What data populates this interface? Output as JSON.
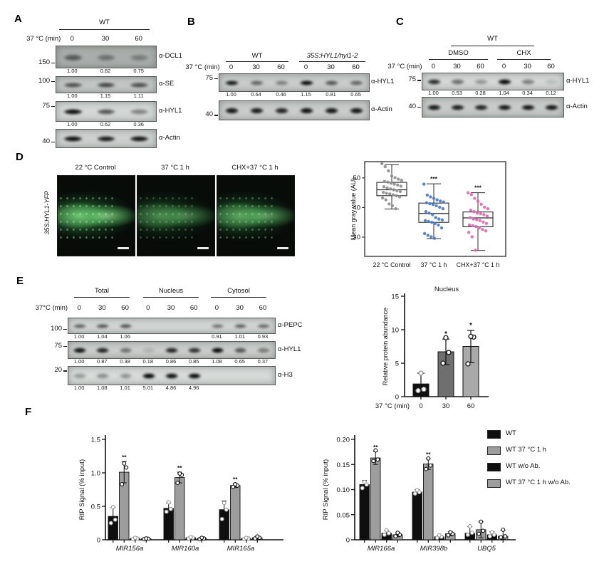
{
  "panel_a": {
    "label": "A",
    "groups": [
      {
        "text": "WT",
        "italic": false
      }
    ],
    "lane_axis_label": "37 °C (min)",
    "lanes": [
      "0",
      "30",
      "60"
    ],
    "blots": [
      {
        "antibody": "α-DCL1",
        "marker": "150",
        "values": [
          "1.00",
          "0.82",
          "0.75"
        ],
        "band_darkness": [
          0.5,
          0.36,
          0.3
        ],
        "bg": "#a9aeac"
      },
      {
        "antibody": "α-SE",
        "marker": "100",
        "values": [
          "1.00",
          "1.15",
          "1.11"
        ],
        "band_darkness": [
          0.62,
          0.68,
          0.64
        ],
        "bg": "#c3c7c5"
      },
      {
        "antibody": "α-HYL1",
        "marker": "75",
        "values": [
          "1.00",
          "0.62",
          "0.36"
        ],
        "band_darkness": [
          0.97,
          0.62,
          0.4
        ],
        "bg": "#d3d7d5"
      },
      {
        "antibody": "α-Actin",
        "marker": "40",
        "values": null,
        "band_darkness": [
          0.96,
          0.9,
          0.93
        ],
        "bg": "#cdd1cf"
      }
    ]
  },
  "panel_b": {
    "label": "B",
    "groups": [
      {
        "text": "WT",
        "italic": false
      },
      {
        "text": "35S:HYL1/hyl1-2",
        "italic": true
      }
    ],
    "lane_axis_label": "37 °C (min)",
    "lanes": [
      "0",
      "30",
      "60",
      "0",
      "30",
      "60"
    ],
    "blots": [
      {
        "antibody": "α-HYL1",
        "marker": "75",
        "values": [
          "1.00",
          "0.64",
          "0.46",
          "1.15",
          "0.81",
          "0.65"
        ],
        "band_darkness": [
          0.92,
          0.52,
          0.38,
          1.0,
          0.6,
          0.52
        ],
        "bg": "#c8ccca"
      },
      {
        "antibody": "α-Actin",
        "marker": "40",
        "values": null,
        "band_darkness": [
          0.93,
          0.9,
          0.86,
          0.95,
          0.93,
          0.93
        ],
        "bg": "#c8ccca"
      }
    ]
  },
  "panel_c": {
    "label": "C",
    "top_header": "WT",
    "groups": [
      {
        "text": "DMSO",
        "italic": false
      },
      {
        "text": "CHX",
        "italic": false
      }
    ],
    "lane_axis_label": "37 °C (min)",
    "lanes": [
      "0",
      "30",
      "60",
      "0",
      "30",
      "60"
    ],
    "blots": [
      {
        "antibody": "α-HYL1",
        "marker": "75",
        "values": [
          "1.00",
          "0.53",
          "0.28",
          "1.04",
          "0.34",
          "0.12"
        ],
        "band_darkness": [
          0.82,
          0.5,
          0.3,
          1.0,
          0.42,
          0.12
        ],
        "bg": "#d4d8d6"
      },
      {
        "antibody": "α-Actin",
        "marker": "40",
        "values": null,
        "band_darkness": [
          0.93,
          0.9,
          0.88,
          0.93,
          0.94,
          0.95
        ],
        "bg": "#c6cac8"
      }
    ]
  },
  "panel_d": {
    "label": "D",
    "side_label": "35S:HYL1-YFP",
    "images": [
      {
        "title": "22 °C Control",
        "brightness": 1.0
      },
      {
        "title": "37 °C  1 h",
        "brightness": 0.6
      },
      {
        "title": "CHX+37 °C  1 h",
        "brightness": 0.78
      }
    ]
  },
  "panel_e": {
    "label": "E",
    "groups": [
      {
        "text": "Total",
        "italic": false
      },
      {
        "text": "Nucleus",
        "italic": false
      },
      {
        "text": "Cytosol",
        "italic": false
      }
    ],
    "lane_axis_label": "37°C (min)",
    "lanes": [
      "0",
      "30",
      "60",
      "0",
      "30",
      "60",
      "0",
      "30",
      "60"
    ],
    "blots": [
      {
        "antibody": "α-PEPC",
        "marker": "100",
        "values": [
          "1.00",
          "1.04",
          "1.06",
          "",
          "",
          "",
          "0.91",
          "1.01",
          "0.93"
        ],
        "band_darkness": [
          0.55,
          0.6,
          0.62,
          0,
          0,
          0,
          0.45,
          0.55,
          0.5
        ],
        "bg": "#d2d6d4"
      },
      {
        "antibody": "α-HYL1",
        "marker": "75",
        "values": [
          "1.00",
          "0.87",
          "0.38",
          "0.18",
          "0.86",
          "0.85",
          "1.08",
          "0.65",
          "0.37"
        ],
        "band_darkness": [
          0.95,
          0.85,
          0.45,
          0.12,
          0.85,
          0.8,
          1.0,
          0.6,
          0.4
        ],
        "bg": "#c9cdcb"
      },
      {
        "antibody": "α-H3",
        "marker": "20",
        "values": [
          "1.00",
          "1.08",
          "1.01",
          "5.01",
          "4.86",
          "4.96",
          "",
          "",
          ""
        ],
        "band_darkness": [
          0.3,
          0.35,
          0.32,
          1.0,
          0.95,
          0.98,
          0,
          0,
          0
        ],
        "bg": "#d6dad8"
      }
    ]
  },
  "panel_f": {
    "label": "F",
    "legend": [
      {
        "label": "WT",
        "color": "#0f0f0f"
      },
      {
        "label": "WT 37 °C 1 h",
        "color": "#9d9d9d"
      },
      {
        "label": "WT  w/o Ab.",
        "color": "#0f0f0f"
      },
      {
        "label": "WT 37 °C 1 h w/o Ab.",
        "color": "#9d9d9d"
      }
    ]
  },
  "chart_data": [
    {
      "id": "d_boxplot",
      "panel": "D",
      "type": "box",
      "ylabel": "Mean gray value (AU)",
      "ylim": [
        23.5,
        55.5
      ],
      "yticks": [
        30,
        40,
        50
      ],
      "categories": [
        "22 °C Control",
        "37 °C  1 h",
        "CHX+37 °C  1 h"
      ],
      "point_colors": [
        "#8f8f8f",
        "#4a7cc9",
        "#df6aae"
      ],
      "boxes": [
        {
          "min": 39.5,
          "q1": 44.0,
          "median": 46.0,
          "q3": 48.5,
          "max": 54.5,
          "sig": ""
        },
        {
          "min": 29.5,
          "q1": 35.0,
          "median": 38.0,
          "q3": 41.5,
          "max": 48.0,
          "sig": "***"
        },
        {
          "min": 25.5,
          "q1": 33.5,
          "median": 36.5,
          "q3": 38.5,
          "max": 45.0,
          "sig": "***"
        }
      ],
      "points": [
        [
          54.8,
          53.8,
          52.4,
          50.6,
          50.1,
          49.6,
          49.2,
          48.8,
          48.6,
          48.2,
          47.9,
          47.6,
          47.2,
          47.0,
          46.6,
          46.3,
          46.0,
          45.7,
          45.4,
          45.1,
          44.8,
          44.6,
          44.3,
          44.0,
          43.6,
          43.2,
          42.6,
          41.2,
          40.6,
          39.6
        ],
        [
          47.9,
          44.2,
          43.6,
          43.1,
          42.6,
          42.2,
          41.9,
          41.6,
          41.3,
          41.0,
          40.6,
          40.1,
          39.6,
          38.6,
          38.1,
          37.6,
          36.6,
          36.1,
          35.8,
          35.6,
          35.3,
          35.0,
          34.6,
          34.1,
          33.1,
          31.2,
          30.6,
          30.1,
          29.6
        ],
        [
          45.0,
          44.4,
          43.1,
          42.1,
          41.1,
          40.1,
          39.6,
          39.1,
          38.6,
          38.1,
          37.9,
          37.6,
          37.1,
          36.6,
          36.1,
          35.9,
          35.6,
          35.1,
          34.6,
          34.1,
          33.9,
          33.6,
          33.1,
          32.6,
          32.1,
          31.6,
          30.1,
          25.6
        ]
      ]
    },
    {
      "id": "e_nucleus_bar",
      "panel": "E",
      "type": "bar",
      "title": "Nucleus",
      "ylabel": "Relative protein abundance",
      "xlabel": "37 °C (min)",
      "ylim": [
        0,
        15
      ],
      "yticks": [
        0,
        5,
        10,
        15
      ],
      "categories": [
        "0",
        "30",
        "60"
      ],
      "bar_colors": [
        "#0f0f0f",
        "#6f6f6f",
        "#a9a9a9"
      ],
      "point_strokes": [
        "#909090",
        "#111111",
        "#111111"
      ],
      "values": [
        1.9,
        6.7,
        7.5
      ],
      "errors": [
        1.6,
        1.9,
        2.4
      ],
      "sig": [
        "",
        "*",
        "*"
      ],
      "points": [
        [
          0.9,
          1.1,
          3.5
        ],
        [
          5.0,
          6.6,
          8.8
        ],
        [
          4.9,
          8.9,
          9.0
        ]
      ]
    },
    {
      "id": "f_left",
      "panel": "F",
      "type": "grouped_bar",
      "ylabel": "RIP Signal (% input)",
      "ylim": [
        0,
        1.5
      ],
      "yticks": [
        0,
        0.5,
        1.0,
        1.5
      ],
      "ytick_labels": [
        "0",
        "0.5",
        "1.0",
        "1.5"
      ],
      "categories": [
        "MIR156a",
        "MIR160a",
        "MIR165a"
      ],
      "series": [
        {
          "name": "WT",
          "color": "#0f0f0f",
          "point_stroke": "#9a9a9a",
          "values": [
            0.35,
            0.47,
            0.45
          ],
          "err": [
            0.13,
            0.08,
            0.13
          ],
          "sig": [
            "",
            "",
            ""
          ],
          "points": [
            [
              0.25,
              0.3,
              0.49
            ],
            [
              0.42,
              0.46,
              0.56
            ],
            [
              0.31,
              0.45,
              0.55
            ]
          ]
        },
        {
          "name": "WT 37 °C 1 h",
          "color": "#9d9d9d",
          "point_stroke": "#111111",
          "values": [
            1.01,
            0.93,
            0.81
          ],
          "err": [
            0.16,
            0.08,
            0.03
          ],
          "sig": [
            "**",
            "**",
            "**"
          ],
          "points": [
            [
              0.83,
              1.08,
              1.14
            ],
            [
              0.85,
              0.97,
              0.99
            ],
            [
              0.79,
              0.81,
              0.83
            ]
          ]
        },
        {
          "name": "WT  w/o Ab.",
          "color": "#0f0f0f",
          "point_stroke": "#9a9a9a",
          "values": [
            0.02,
            0.03,
            0.02
          ],
          "err": [
            0.01,
            0.012,
            0.01
          ],
          "sig": [
            "",
            "",
            ""
          ],
          "points": [
            [
              0.01,
              0.02,
              0.03
            ],
            [
              0.02,
              0.03,
              0.04
            ],
            [
              0.01,
              0.02,
              0.03
            ]
          ]
        },
        {
          "name": "WT 37 °C 1 h w/o Ab.",
          "color": "#9d9d9d",
          "point_stroke": "#111111",
          "values": [
            0.015,
            0.02,
            0.03
          ],
          "err": [
            0.008,
            0.01,
            0.02
          ],
          "sig": [
            "",
            "",
            ""
          ],
          "points": [
            [
              0.01,
              0.015,
              0.02
            ],
            [
              0.01,
              0.02,
              0.03
            ],
            [
              0.02,
              0.03,
              0.05
            ]
          ]
        }
      ]
    },
    {
      "id": "f_right",
      "panel": "F",
      "type": "grouped_bar",
      "ylabel": "RIP Signal (% input)",
      "ylim": [
        0,
        0.2
      ],
      "yticks": [
        0,
        0.05,
        0.1,
        0.15,
        0.2
      ],
      "ytick_labels": [
        "0",
        "0.05",
        "0.10",
        "0.15",
        "0.20"
      ],
      "categories": [
        "MIR166a",
        "MIR398b",
        "UBQ5"
      ],
      "series": [
        {
          "name": "WT",
          "color": "#0f0f0f",
          "point_stroke": "#9a9a9a",
          "values": [
            0.11,
            0.095,
            0.013
          ],
          "err": [
            0.008,
            0.005,
            0.013
          ],
          "sig": [
            "",
            "",
            ""
          ],
          "points": [
            [
              0.103,
              0.11,
              0.115
            ],
            [
              0.092,
              0.095,
              0.099
            ],
            [
              0.01,
              0.014,
              0.027
            ]
          ]
        },
        {
          "name": "WT 37 °C 1 h",
          "color": "#9d9d9d",
          "point_stroke": "#111111",
          "values": [
            0.163,
            0.151,
            0.02
          ],
          "err": [
            0.013,
            0.011,
            0.016
          ],
          "sig": [
            "**",
            "**",
            ""
          ],
          "points": [
            [
              0.157,
              0.16,
              0.178
            ],
            [
              0.141,
              0.148,
              0.162
            ],
            [
              0.012,
              0.018,
              0.036
            ]
          ]
        },
        {
          "name": "WT  w/o Ab.",
          "color": "#0f0f0f",
          "point_stroke": "#9a9a9a",
          "values": [
            0.013,
            0.006,
            0.01
          ],
          "err": [
            0.006,
            0.003,
            0.006
          ],
          "sig": [
            "",
            "",
            ""
          ],
          "points": [
            [
              0.01,
              0.013,
              0.019
            ],
            [
              0.004,
              0.006,
              0.009
            ],
            [
              0.007,
              0.01,
              0.015
            ]
          ]
        },
        {
          "name": "WT 37 °C 1 h w/o Ab.",
          "color": "#9d9d9d",
          "point_stroke": "#111111",
          "values": [
            0.01,
            0.012,
            0.007
          ],
          "err": [
            0.004,
            0.004,
            0.012
          ],
          "sig": [
            "",
            "",
            ""
          ],
          "points": [
            [
              0.007,
              0.01,
              0.014
            ],
            [
              0.009,
              0.012,
              0.015
            ],
            [
              0.005,
              0.007,
              0.02
            ]
          ]
        }
      ]
    }
  ]
}
